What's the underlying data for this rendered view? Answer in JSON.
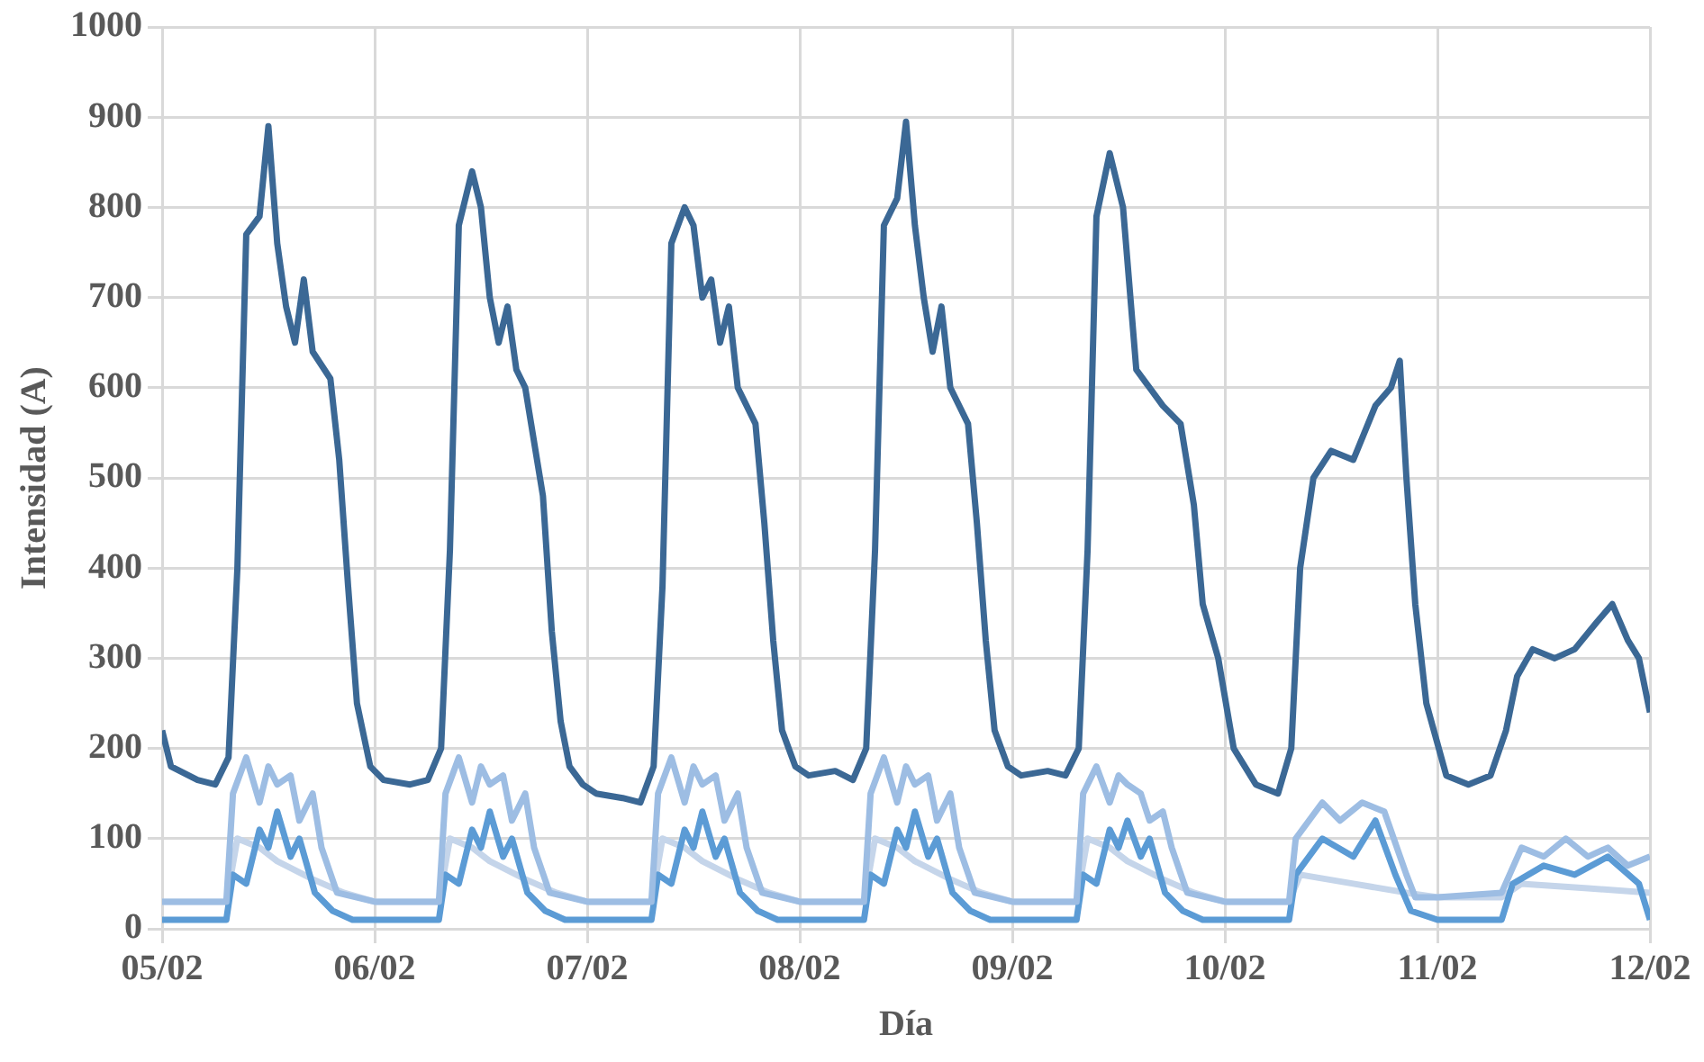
{
  "chart_data": {
    "type": "line",
    "xlabel": "Día",
    "ylabel": "Intensidad (A)",
    "xlim": [
      "--02-05",
      "--02-12"
    ],
    "xticks": [
      {
        "value": "--02-05",
        "label": "05/02"
      },
      {
        "value": "--02-06",
        "label": "06/02"
      },
      {
        "value": "--02-07",
        "label": "07/02"
      },
      {
        "value": "--02-08",
        "label": "08/02"
      },
      {
        "value": "--02-09",
        "label": "09/02"
      },
      {
        "value": "--02-10",
        "label": "10/02"
      },
      {
        "value": "--02-11",
        "label": "11/02"
      },
      {
        "value": "--02-12",
        "label": "12/02"
      }
    ],
    "ylim": [
      0,
      1000
    ],
    "yticks": [
      0,
      100,
      200,
      300,
      400,
      500,
      600,
      700,
      800,
      900,
      1000
    ],
    "grid": true,
    "marker": "none",
    "line_style": "solid",
    "series": [
      {
        "color": "#3b6895",
        "x": [
          "--02-05T00:00",
          "--02-05T01:00",
          "--02-05T04:00",
          "--02-05T06:00",
          "--02-05T07:30",
          "--02-05T08:30",
          "--02-05T09:30",
          "--02-05T11:00",
          "--02-05T12:00",
          "--02-05T13:00",
          "--02-05T14:00",
          "--02-05T15:00",
          "--02-05T16:00",
          "--02-05T17:00",
          "--02-05T19:00",
          "--02-05T20:00",
          "--02-05T21:00",
          "--02-05T22:00",
          "--02-05T23:30",
          "--02-06T01:00",
          "--02-06T04:00",
          "--02-06T06:00",
          "--02-06T07:30",
          "--02-06T08:30",
          "--02-06T09:30",
          "--02-06T11:00",
          "--02-06T12:00",
          "--02-06T13:00",
          "--02-06T14:00",
          "--02-06T15:00",
          "--02-06T16:00",
          "--02-06T17:00",
          "--02-06T19:00",
          "--02-06T20:00",
          "--02-06T21:00",
          "--02-06T22:00",
          "--02-06T23:30",
          "--02-07T01:00",
          "--02-07T04:00",
          "--02-07T06:00",
          "--02-07T07:30",
          "--02-07T08:30",
          "--02-07T09:30",
          "--02-07T11:00",
          "--02-07T12:00",
          "--02-07T13:00",
          "--02-07T14:00",
          "--02-07T15:00",
          "--02-07T16:00",
          "--02-07T17:00",
          "--02-07T19:00",
          "--02-07T20:00",
          "--02-07T21:00",
          "--02-07T22:00",
          "--02-07T23:30",
          "--02-08T01:00",
          "--02-08T04:00",
          "--02-08T06:00",
          "--02-08T07:30",
          "--02-08T08:30",
          "--02-08T09:30",
          "--02-08T11:00",
          "--02-08T12:00",
          "--02-08T13:00",
          "--02-08T14:00",
          "--02-08T15:00",
          "--02-08T16:00",
          "--02-08T17:00",
          "--02-08T19:00",
          "--02-08T20:00",
          "--02-08T21:00",
          "--02-08T22:00",
          "--02-08T23:30",
          "--02-09T01:00",
          "--02-09T04:00",
          "--02-09T06:00",
          "--02-09T07:30",
          "--02-09T08:30",
          "--02-09T09:30",
          "--02-09T11:00",
          "--02-09T12:30",
          "--02-09T14:00",
          "--02-09T15:30",
          "--02-09T17:00",
          "--02-09T19:00",
          "--02-09T20:30",
          "--02-09T21:30",
          "--02-09T23:15",
          "--02-10T01:00",
          "--02-10T03:30",
          "--02-10T06:00",
          "--02-10T07:30",
          "--02-10T08:30",
          "--02-10T10:00",
          "--02-10T12:00",
          "--02-10T14:30",
          "--02-10T17:00",
          "--02-10T18:45",
          "--02-10T19:45",
          "--02-10T20:30",
          "--02-10T21:30",
          "--02-10T22:45",
          "--02-11T01:00",
          "--02-11T03:30",
          "--02-11T06:00",
          "--02-11T07:45",
          "--02-11T09:00",
          "--02-11T10:45",
          "--02-11T13:15",
          "--02-11T15:30",
          "--02-11T18:00",
          "--02-11T19:45",
          "--02-11T21:30",
          "--02-11T22:45",
          "--02-12T00:00"
        ],
        "values": [
          220,
          180,
          165,
          160,
          190,
          400,
          770,
          790,
          890,
          760,
          690,
          650,
          720,
          640,
          610,
          520,
          380,
          250,
          180,
          165,
          160,
          165,
          200,
          420,
          780,
          840,
          800,
          700,
          650,
          690,
          620,
          600,
          480,
          330,
          230,
          180,
          160,
          150,
          145,
          140,
          180,
          380,
          760,
          800,
          780,
          700,
          720,
          650,
          690,
          600,
          560,
          450,
          320,
          220,
          180,
          170,
          175,
          165,
          200,
          420,
          780,
          810,
          895,
          780,
          700,
          640,
          690,
          600,
          560,
          450,
          320,
          220,
          180,
          170,
          175,
          170,
          200,
          420,
          790,
          860,
          800,
          620,
          600,
          580,
          560,
          470,
          360,
          300,
          200,
          160,
          150,
          200,
          400,
          500,
          530,
          520,
          580,
          600,
          630,
          500,
          360,
          250,
          170,
          160,
          170,
          220,
          280,
          310,
          300,
          310,
          340,
          360,
          320,
          300,
          240
        ]
      },
      {
        "color": "#9dbde3",
        "x": [
          "--02-05T00:00",
          "--02-05T07:15",
          "--02-05T08:00",
          "--02-05T09:30",
          "--02-05T11:00",
          "--02-05T12:00",
          "--02-05T13:00",
          "--02-05T14:30",
          "--02-05T15:30",
          "--02-05T17:00",
          "--02-05T18:00",
          "--02-05T19:45",
          "--02-06T00:00",
          "--02-06T07:15",
          "--02-06T08:00",
          "--02-06T09:30",
          "--02-06T11:00",
          "--02-06T12:00",
          "--02-06T13:00",
          "--02-06T14:30",
          "--02-06T15:30",
          "--02-06T17:00",
          "--02-06T18:00",
          "--02-06T19:45",
          "--02-07T00:00",
          "--02-07T07:15",
          "--02-07T08:00",
          "--02-07T09:30",
          "--02-07T11:00",
          "--02-07T12:00",
          "--02-07T13:00",
          "--02-07T14:30",
          "--02-07T15:30",
          "--02-07T17:00",
          "--02-07T18:00",
          "--02-07T19:45",
          "--02-08T00:00",
          "--02-08T07:15",
          "--02-08T08:00",
          "--02-08T09:30",
          "--02-08T11:00",
          "--02-08T12:00",
          "--02-08T13:00",
          "--02-08T14:30",
          "--02-08T15:30",
          "--02-08T17:00",
          "--02-08T18:00",
          "--02-08T19:45",
          "--02-09T00:00",
          "--02-09T07:15",
          "--02-09T08:00",
          "--02-09T09:30",
          "--02-09T11:00",
          "--02-09T12:00",
          "--02-09T13:00",
          "--02-09T14:30",
          "--02-09T15:30",
          "--02-09T17:00",
          "--02-09T18:00",
          "--02-09T19:45",
          "--02-10T00:00",
          "--02-10T07:15",
          "--02-10T08:00",
          "--02-10T11:00",
          "--02-10T13:00",
          "--02-10T15:30",
          "--02-10T18:00",
          "--02-10T20:30",
          "--02-10T21:30",
          "--02-11T00:00",
          "--02-11T07:15",
          "--02-11T09:30",
          "--02-11T12:00",
          "--02-11T14:30",
          "--02-11T17:00",
          "--02-11T19:15",
          "--02-11T21:30",
          "--02-12T00:00"
        ],
        "values": [
          30,
          30,
          150,
          190,
          140,
          180,
          160,
          170,
          120,
          150,
          90,
          40,
          30,
          30,
          150,
          190,
          140,
          180,
          160,
          170,
          120,
          150,
          90,
          40,
          30,
          30,
          150,
          190,
          140,
          180,
          160,
          170,
          120,
          150,
          90,
          40,
          30,
          30,
          150,
          190,
          140,
          180,
          160,
          170,
          120,
          150,
          90,
          40,
          30,
          30,
          150,
          180,
          140,
          170,
          160,
          150,
          120,
          130,
          90,
          40,
          30,
          30,
          100,
          140,
          120,
          140,
          130,
          60,
          35,
          35,
          40,
          90,
          80,
          100,
          80,
          90,
          70,
          80
        ]
      },
      {
        "color": "#5b9bd5",
        "x": [
          "--02-05T00:00",
          "--02-05T07:15",
          "--02-05T08:00",
          "--02-05T09:30",
          "--02-05T11:00",
          "--02-05T12:00",
          "--02-05T13:00",
          "--02-05T14:30",
          "--02-05T15:30",
          "--02-05T17:15",
          "--02-05T19:15",
          "--02-05T21:30",
          "--02-06T00:00",
          "--02-06T07:15",
          "--02-06T08:00",
          "--02-06T09:30",
          "--02-06T11:00",
          "--02-06T12:00",
          "--02-06T13:00",
          "--02-06T14:30",
          "--02-06T15:30",
          "--02-06T17:15",
          "--02-06T19:15",
          "--02-06T21:30",
          "--02-07T00:00",
          "--02-07T07:15",
          "--02-07T08:00",
          "--02-07T09:30",
          "--02-07T11:00",
          "--02-07T12:00",
          "--02-07T13:00",
          "--02-07T14:30",
          "--02-07T15:30",
          "--02-07T17:15",
          "--02-07T19:15",
          "--02-07T21:30",
          "--02-08T00:00",
          "--02-08T07:15",
          "--02-08T08:00",
          "--02-08T09:30",
          "--02-08T11:00",
          "--02-08T12:00",
          "--02-08T13:00",
          "--02-08T14:30",
          "--02-08T15:30",
          "--02-08T17:15",
          "--02-08T19:15",
          "--02-08T21:30",
          "--02-09T00:00",
          "--02-09T07:15",
          "--02-09T08:00",
          "--02-09T09:30",
          "--02-09T11:00",
          "--02-09T12:00",
          "--02-09T13:00",
          "--02-09T14:30",
          "--02-09T15:30",
          "--02-09T17:15",
          "--02-09T19:15",
          "--02-09T21:30",
          "--02-10T00:00",
          "--02-10T07:15",
          "--02-10T08:00",
          "--02-10T11:00",
          "--02-10T14:30",
          "--02-10T17:00",
          "--02-10T19:15",
          "--02-10T21:00",
          "--02-11T00:00",
          "--02-11T07:15",
          "--02-11T08:30",
          "--02-11T12:00",
          "--02-11T15:30",
          "--02-11T19:15",
          "--02-11T22:45",
          "--02-12T00:00"
        ],
        "values": [
          10,
          10,
          60,
          50,
          110,
          90,
          130,
          80,
          100,
          40,
          20,
          10,
          10,
          10,
          60,
          50,
          110,
          90,
          130,
          80,
          100,
          40,
          20,
          10,
          10,
          10,
          60,
          50,
          110,
          90,
          130,
          80,
          100,
          40,
          20,
          10,
          10,
          10,
          60,
          50,
          110,
          90,
          130,
          80,
          100,
          40,
          20,
          10,
          10,
          10,
          60,
          50,
          110,
          90,
          120,
          80,
          100,
          40,
          20,
          10,
          10,
          10,
          60,
          100,
          80,
          120,
          60,
          20,
          10,
          10,
          50,
          70,
          60,
          80,
          50,
          10
        ]
      },
      {
        "color": "#c5d5ea",
        "x": [
          "--02-05T00:00",
          "--02-05T07:15",
          "--02-05T08:30",
          "--02-05T11:00",
          "--02-05T13:00",
          "--02-05T17:00",
          "--02-05T20:30",
          "--02-06T00:00",
          "--02-06T07:15",
          "--02-06T08:30",
          "--02-06T11:00",
          "--02-06T13:00",
          "--02-06T17:00",
          "--02-06T20:30",
          "--02-07T00:00",
          "--02-07T07:15",
          "--02-07T08:30",
          "--02-07T11:00",
          "--02-07T13:00",
          "--02-07T17:00",
          "--02-07T20:30",
          "--02-08T00:00",
          "--02-08T07:15",
          "--02-08T08:30",
          "--02-08T11:00",
          "--02-08T13:00",
          "--02-08T17:00",
          "--02-08T20:30",
          "--02-09T00:00",
          "--02-09T07:15",
          "--02-09T08:30",
          "--02-09T11:00",
          "--02-09T13:00",
          "--02-09T17:00",
          "--02-09T20:30",
          "--02-10T00:00",
          "--02-10T07:15",
          "--02-10T08:30",
          "--02-10T14:30",
          "--02-10T20:30",
          "--02-11T00:00",
          "--02-11T07:15",
          "--02-11T09:30",
          "--02-11T17:00",
          "--02-12T00:00"
        ],
        "values": [
          30,
          30,
          100,
          90,
          75,
          55,
          40,
          30,
          30,
          100,
          90,
          75,
          55,
          40,
          30,
          30,
          100,
          90,
          75,
          55,
          40,
          30,
          30,
          100,
          90,
          75,
          55,
          40,
          30,
          30,
          100,
          90,
          75,
          55,
          40,
          30,
          30,
          60,
          50,
          40,
          35,
          35,
          50,
          45,
          40
        ]
      }
    ]
  }
}
